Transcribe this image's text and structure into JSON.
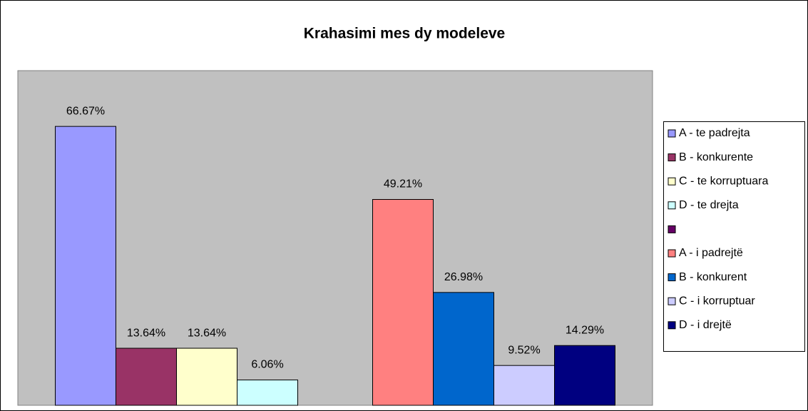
{
  "chart_data": {
    "type": "bar",
    "title": "Krahasimi mes dy modeleve",
    "categories": [
      null,
      null
    ],
    "ylim": [
      0,
      80
    ],
    "series": [
      {
        "name": "A - te padrejta",
        "color": "#9999FF",
        "values": [
          66.67,
          null
        ],
        "value_labels": [
          "66.67%",
          null
        ]
      },
      {
        "name": "B - konkurente",
        "color": "#993366",
        "values": [
          13.64,
          null
        ],
        "value_labels": [
          "13.64%",
          null
        ]
      },
      {
        "name": "C - te korruptuara",
        "color": "#FFFFCC",
        "values": [
          13.64,
          null
        ],
        "value_labels": [
          "13.64%",
          null
        ]
      },
      {
        "name": "D - te drejta",
        "color": "#CCFFFF",
        "values": [
          6.06,
          null
        ],
        "value_labels": [
          "6.06%",
          null
        ]
      },
      {
        "name": null,
        "color": "#660066",
        "values": [
          null,
          null
        ]
      },
      {
        "name": "A - i padrejtë",
        "color": "#FF8080",
        "values": [
          null,
          49.21
        ],
        "value_labels": [
          null,
          "49.21%"
        ]
      },
      {
        "name": "B - konkurent",
        "color": "#0066CC",
        "values": [
          null,
          26.98
        ],
        "value_labels": [
          null,
          "26.98%"
        ]
      },
      {
        "name": "C - i korruptuar",
        "color": "#CCCCFF",
        "values": [
          null,
          9.52
        ],
        "value_labels": [
          null,
          "9.52%"
        ]
      },
      {
        "name": "D - i drejtë",
        "color": "#000080",
        "values": [
          null,
          14.29
        ],
        "value_labels": [
          null,
          "14.29%"
        ]
      }
    ]
  }
}
